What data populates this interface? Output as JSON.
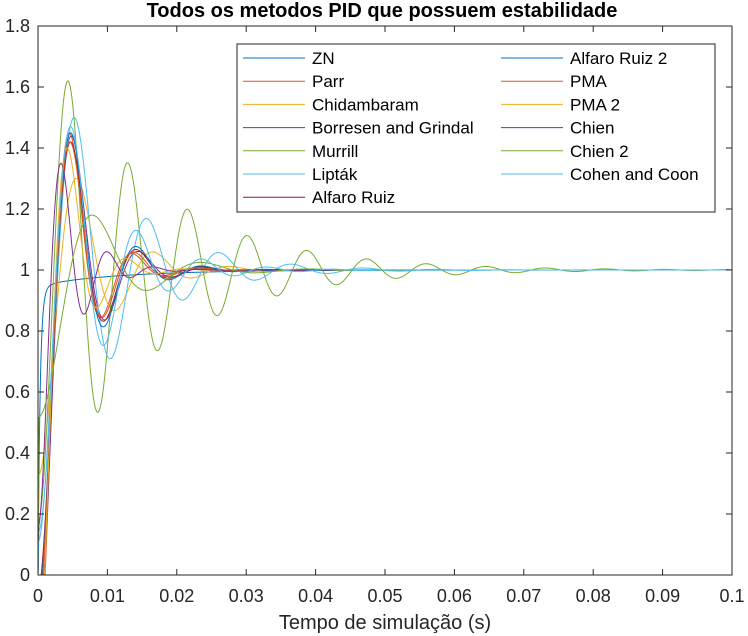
{
  "chart_data": {
    "type": "line",
    "title": "Todos os metodos PID que possuem estabilidade",
    "xlabel": "Tempo de simulação (s)",
    "ylabel": "",
    "xlim": [
      0,
      0.1
    ],
    "ylim": [
      0,
      1.8
    ],
    "xticks": [
      "0",
      "0.01",
      "0.02",
      "0.03",
      "0.04",
      "0.05",
      "0.06",
      "0.07",
      "0.08",
      "0.09",
      "0.1"
    ],
    "yticks": [
      "0",
      "0.2",
      "0.4",
      "0.6",
      "0.8",
      "1",
      "1.2",
      "1.4",
      "1.6",
      "1.8"
    ],
    "grid": false,
    "legend_position": "top-right",
    "legend_columns": 2,
    "series": [
      {
        "name": "ZN",
        "color": "#0072BD",
        "type": "fast_rise",
        "end": 0.08
      },
      {
        "name": "Parr",
        "color": "#D95319",
        "type": "osc",
        "peak": 1.45,
        "tp": 0.0045,
        "zeta": 0.32,
        "end": 0.1
      },
      {
        "name": "Chidambaram",
        "color": "#EDB120",
        "type": "osc",
        "peak": 1.3,
        "tp": 0.0055,
        "zeta": 0.25,
        "end": 0.1
      },
      {
        "name": "Borresen and Grindal",
        "color": "#7E2F8E",
        "type": "osc",
        "peak": 1.44,
        "tp": 0.0048,
        "zeta": 0.3,
        "end": 0.1
      },
      {
        "name": "Murrill",
        "color": "#77AC30",
        "type": "osc",
        "peak": 1.62,
        "tp": 0.0043,
        "zeta": 0.09,
        "end": 0.1
      },
      {
        "name": "Lipták",
        "color": "#4DBEEE",
        "type": "osc",
        "peak": 1.5,
        "tp": 0.0052,
        "zeta": 0.17,
        "end": 0.1
      },
      {
        "name": "Alfaro Ruiz",
        "color": "#A2142F",
        "type": "osc",
        "peak": 1.42,
        "tp": 0.0047,
        "zeta": 0.28,
        "end": 0.1
      },
      {
        "name": "Alfaro Ruiz 2",
        "color": "#0072BD",
        "type": "osc",
        "peak": 1.45,
        "tp": 0.0047,
        "zeta": 0.27,
        "end": 0.08
      },
      {
        "name": "PMA",
        "color": "#D95319",
        "type": "osc",
        "peak": 1.42,
        "tp": 0.0046,
        "zeta": 0.3,
        "end": 0.04
      },
      {
        "name": "PMA 2",
        "color": "#EDB120",
        "type": "osc",
        "peak": 1.4,
        "tp": 0.0042,
        "zeta": 0.35,
        "end": 0.1
      },
      {
        "name": "Chien",
        "color": "#7E2F8E",
        "type": "osc",
        "peak": 1.35,
        "tp": 0.0033,
        "zeta": 0.27,
        "end": 0.1
      },
      {
        "name": "Chien 2",
        "color": "#77AC30",
        "type": "osc",
        "peak": 1.18,
        "tp": 0.0078,
        "zeta": 0.3,
        "end": 0.1
      },
      {
        "name": "Cohen and Coon",
        "color": "#4DBEEE",
        "type": "osc",
        "peak": 1.47,
        "tp": 0.0047,
        "zeta": 0.2,
        "end": 0.1
      }
    ]
  }
}
